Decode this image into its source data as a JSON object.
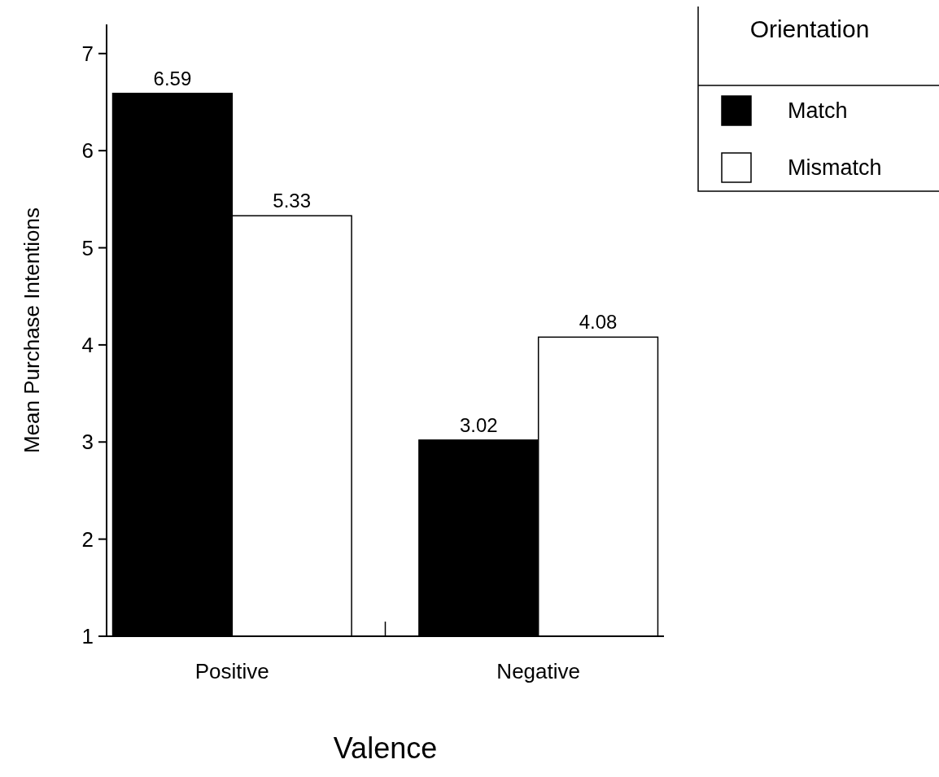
{
  "chart_data": {
    "type": "bar",
    "xlabel": "Valence",
    "ylabel": "Mean Purchase Intentions",
    "legend_title": "Orientation",
    "categories": [
      "Positive",
      "Negative"
    ],
    "series": [
      {
        "name": "Match",
        "color": "#000000",
        "values": [
          6.59,
          3.02
        ]
      },
      {
        "name": "Mismatch",
        "color": "#ffffff",
        "values": [
          5.33,
          4.08
        ]
      }
    ],
    "ylim": [
      1,
      7.3
    ],
    "yticks": [
      1,
      2,
      3,
      4,
      5,
      6,
      7
    ],
    "data_labels": true,
    "legend": "top right",
    "grid": false
  }
}
